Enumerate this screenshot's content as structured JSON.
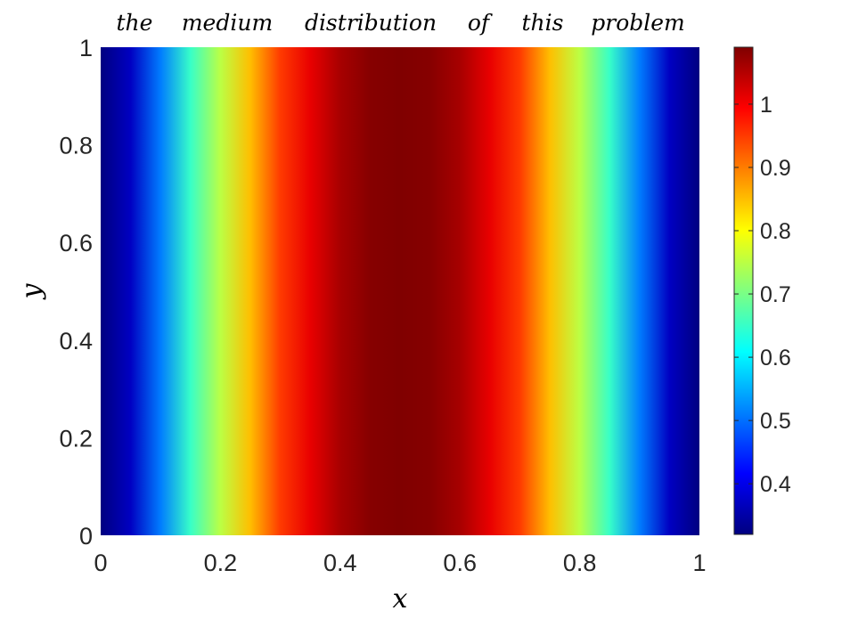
{
  "chart_data": {
    "type": "heatmap",
    "title": "the medium distribution of this problem",
    "title_words": [
      "the",
      "medium",
      "distribution",
      "of",
      "this",
      "problem"
    ],
    "xlabel": "x",
    "ylabel": "y",
    "xlim": [
      0,
      1
    ],
    "ylim": [
      0,
      1
    ],
    "xticks": [
      0,
      0.2,
      0.4,
      0.6,
      0.8,
      1
    ],
    "xtick_labels": [
      "0",
      "0.2",
      "0.4",
      "0.6",
      "0.8",
      "1"
    ],
    "yticks": [
      0,
      0.2,
      0.4,
      0.6,
      0.8,
      1
    ],
    "ytick_labels": [
      "0",
      "0.2",
      "0.4",
      "0.6",
      "0.8",
      "1"
    ],
    "colormap": "jet",
    "color_limits": [
      0.32,
      1.09
    ],
    "colorbar_ticks": [
      0.4,
      0.5,
      0.6,
      0.7,
      0.8,
      0.9,
      1
    ],
    "colorbar_tick_labels": [
      "0.4",
      "0.5",
      "0.6",
      "0.7",
      "0.8",
      "0.9",
      "1"
    ],
    "field_x": [
      0,
      0.05,
      0.1,
      0.15,
      0.2,
      0.25,
      0.3,
      0.35,
      0.4,
      0.45,
      0.5,
      0.55,
      0.6,
      0.65,
      0.7,
      0.75,
      0.8,
      0.85,
      0.9,
      0.95,
      1
    ],
    "field_values": [
      0.32,
      0.37,
      0.51,
      0.65,
      0.75,
      0.85,
      0.95,
      1.01,
      1.06,
      1.085,
      1.09,
      1.085,
      1.06,
      1.01,
      0.95,
      0.85,
      0.75,
      0.65,
      0.51,
      0.37,
      0.32
    ],
    "field_varies_with_y": false,
    "grid": false
  }
}
